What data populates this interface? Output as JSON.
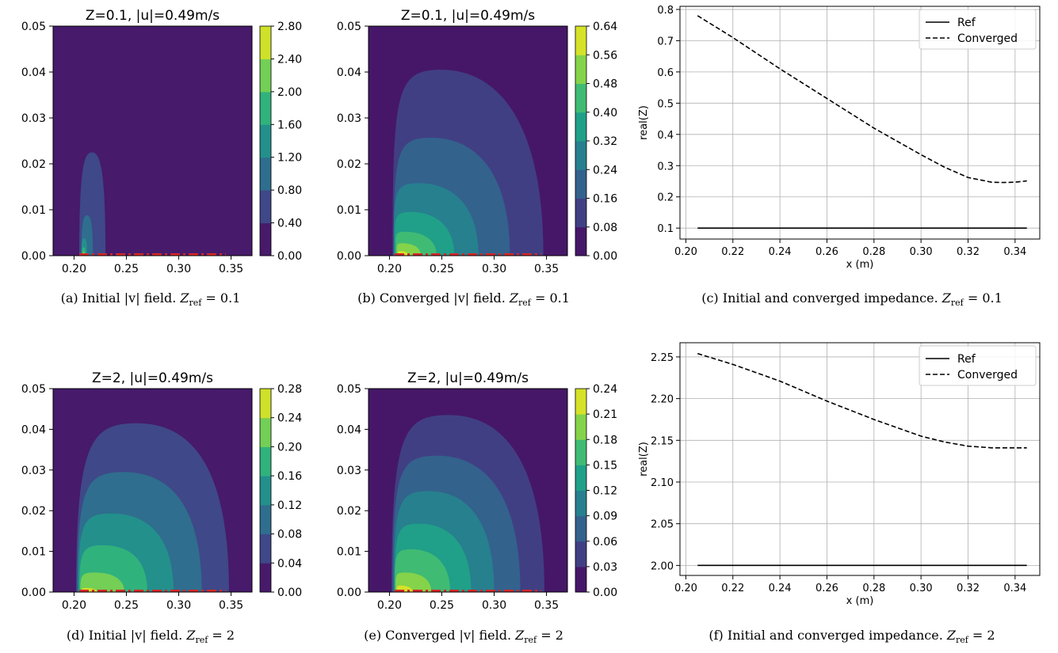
{
  "figure": {
    "captions": [
      {
        "label": "(a)",
        "text": "Initial |v| field.",
        "zlabel": "Z",
        "zsub": "ref",
        "zval": "0.1"
      },
      {
        "label": "(b)",
        "text": "Converged |v| field.",
        "zlabel": "Z",
        "zsub": "ref",
        "zval": "0.1"
      },
      {
        "label": "(c)",
        "text": "Initial and converged impedance.",
        "zlabel": "Z",
        "zsub": "ref",
        "zval": "0.1"
      },
      {
        "label": "(d)",
        "text": "Initial |v| field.",
        "zlabel": "Z",
        "zsub": "ref",
        "zval": "2"
      },
      {
        "label": "(e)",
        "text": "Converged |v| field.",
        "zlabel": "Z",
        "zsub": "ref",
        "zval": "2"
      },
      {
        "label": "(f)",
        "text": "Initial and converged impedance.",
        "zlabel": "Z",
        "zsub": "ref",
        "zval": "2"
      }
    ]
  },
  "chart_data": [
    {
      "id": "a",
      "type": "heatmap",
      "title": "Z=0.1, |u|=0.49m/s",
      "xlim": [
        0.18,
        0.37
      ],
      "ylim": [
        0,
        0.05
      ],
      "xticks": [
        "0.20",
        "0.25",
        "0.30",
        "0.35"
      ],
      "xtick_values": [
        0.2,
        0.25,
        0.3,
        0.35
      ],
      "yticks": [
        "0.00",
        "0.01",
        "0.02",
        "0.03",
        "0.04",
        "0.05"
      ],
      "ytick_values": [
        0,
        0.01,
        0.02,
        0.03,
        0.04,
        0.05
      ],
      "colorbar_ticks": [
        "0.00",
        "0.40",
        "0.80",
        "1.20",
        "1.60",
        "2.00",
        "2.40",
        "2.80"
      ],
      "contours": [
        {
          "level": "0.40",
          "x0": 0.205,
          "x1": 0.23,
          "h": 0.0225,
          "skew": 0.0
        },
        {
          "level": "0.80",
          "x0": 0.207,
          "x1": 0.218,
          "h": 0.0088,
          "skew": 0.0
        },
        {
          "level": "1.20",
          "x0": 0.207,
          "x1": 0.2125,
          "h": 0.0038,
          "skew": 0.0
        },
        {
          "level": "1.60",
          "x0": 0.2075,
          "x1": 0.211,
          "h": 0.0018,
          "skew": 0.0
        },
        {
          "level": "2.00",
          "x0": 0.208,
          "x1": 0.2105,
          "h": 0.0008,
          "skew": 0.0
        }
      ],
      "inlet": [
        0.205,
        0.345
      ],
      "colormap": "viridis"
    },
    {
      "id": "b",
      "type": "heatmap",
      "title": "Z=0.1, |u|=0.49m/s",
      "xlim": [
        0.18,
        0.37
      ],
      "ylim": [
        0,
        0.05
      ],
      "xticks": [
        "0.20",
        "0.25",
        "0.30",
        "0.35"
      ],
      "xtick_values": [
        0.2,
        0.25,
        0.3,
        0.35
      ],
      "yticks": [
        "0.00",
        "0.01",
        "0.02",
        "0.03",
        "0.04",
        "0.05"
      ],
      "ytick_values": [
        0,
        0.01,
        0.02,
        0.03,
        0.04,
        0.05
      ],
      "colorbar_ticks": [
        "0.00",
        "0.08",
        "0.16",
        "0.24",
        "0.32",
        "0.40",
        "0.48",
        "0.56",
        "0.64"
      ],
      "contours": [
        {
          "level": "0.08",
          "x0": 0.203,
          "x1": 0.347,
          "h": 0.0405,
          "skew": -0.35
        },
        {
          "level": "0.16",
          "x0": 0.204,
          "x1": 0.315,
          "h": 0.0257,
          "skew": -0.35
        },
        {
          "level": "0.24",
          "x0": 0.204,
          "x1": 0.285,
          "h": 0.0158,
          "skew": -0.4
        },
        {
          "level": "0.32",
          "x0": 0.205,
          "x1": 0.262,
          "h": 0.0095,
          "skew": -0.45
        },
        {
          "level": "0.40",
          "x0": 0.206,
          "x1": 0.245,
          "h": 0.0052,
          "skew": -0.5
        },
        {
          "level": "0.48",
          "x0": 0.207,
          "x1": 0.23,
          "h": 0.0027,
          "skew": -0.5
        },
        {
          "level": "0.56",
          "x0": 0.208,
          "x1": 0.218,
          "h": 0.001,
          "skew": -0.5
        }
      ],
      "inlet": [
        0.205,
        0.345
      ],
      "colormap": "viridis"
    },
    {
      "id": "c",
      "type": "line",
      "xlabel": "x (m)",
      "ylabel": "real(Z)",
      "xlim": [
        0.1975,
        0.3505
      ],
      "ylim": [
        0.065,
        0.81
      ],
      "xticks": [
        "0.20",
        "0.22",
        "0.24",
        "0.26",
        "0.28",
        "0.30",
        "0.32",
        "0.34"
      ],
      "xtick_values": [
        0.2,
        0.22,
        0.24,
        0.26,
        0.28,
        0.3,
        0.32,
        0.34
      ],
      "yticks": [
        "0.1",
        "0.2",
        "0.3",
        "0.4",
        "0.5",
        "0.6",
        "0.7",
        "0.8"
      ],
      "ytick_values": [
        0.1,
        0.2,
        0.3,
        0.4,
        0.5,
        0.6,
        0.7,
        0.8
      ],
      "grid": true,
      "legend_position": "top-right",
      "series": [
        {
          "name": "Ref",
          "style": "solid",
          "x": [
            0.205,
            0.345
          ],
          "y": [
            0.1,
            0.1
          ]
        },
        {
          "name": "Converged",
          "style": "dashed",
          "x": [
            0.205,
            0.22,
            0.24,
            0.26,
            0.28,
            0.3,
            0.31,
            0.32,
            0.33,
            0.335,
            0.34,
            0.345
          ],
          "y": [
            0.78,
            0.71,
            0.61,
            0.515,
            0.42,
            0.335,
            0.295,
            0.262,
            0.247,
            0.246,
            0.247,
            0.251
          ]
        }
      ]
    },
    {
      "id": "d",
      "type": "heatmap",
      "title": "Z=2, |u|=0.49m/s",
      "xlim": [
        0.18,
        0.37
      ],
      "ylim": [
        0,
        0.05
      ],
      "xticks": [
        "0.20",
        "0.25",
        "0.30",
        "0.35"
      ],
      "xtick_values": [
        0.2,
        0.25,
        0.3,
        0.35
      ],
      "yticks": [
        "0.00",
        "0.01",
        "0.02",
        "0.03",
        "0.04",
        "0.05"
      ],
      "ytick_values": [
        0,
        0.01,
        0.02,
        0.03,
        0.04,
        0.05
      ],
      "colorbar_ticks": [
        "0.00",
        "0.04",
        "0.08",
        "0.12",
        "0.16",
        "0.20",
        "0.24",
        "0.28"
      ],
      "contours": [
        {
          "level": "0.04",
          "x0": 0.202,
          "x1": 0.348,
          "h": 0.0415,
          "skew": -0.2
        },
        {
          "level": "0.08",
          "x0": 0.203,
          "x1": 0.322,
          "h": 0.0295,
          "skew": -0.25
        },
        {
          "level": "0.12",
          "x0": 0.204,
          "x1": 0.295,
          "h": 0.0193,
          "skew": -0.3
        },
        {
          "level": "0.16",
          "x0": 0.205,
          "x1": 0.27,
          "h": 0.0115,
          "skew": -0.3
        },
        {
          "level": "0.20",
          "x0": 0.206,
          "x1": 0.248,
          "h": 0.0048,
          "skew": -0.35
        },
        {
          "level": "0.24",
          "x0": 0.207,
          "x1": 0.222,
          "h": 0.001,
          "skew": -0.3
        }
      ],
      "inlet": [
        0.205,
        0.345
      ],
      "colormap": "viridis"
    },
    {
      "id": "e",
      "type": "heatmap",
      "title": "Z=2, |u|=0.49m/s",
      "xlim": [
        0.18,
        0.37
      ],
      "ylim": [
        0,
        0.05
      ],
      "xticks": [
        "0.20",
        "0.25",
        "0.30",
        "0.35"
      ],
      "xtick_values": [
        0.2,
        0.25,
        0.3,
        0.35
      ],
      "yticks": [
        "0.00",
        "0.01",
        "0.02",
        "0.03",
        "0.04",
        "0.05"
      ],
      "ytick_values": [
        0,
        0.01,
        0.02,
        0.03,
        0.04,
        0.05
      ],
      "colorbar_ticks": [
        "0.00",
        "0.03",
        "0.06",
        "0.09",
        "0.12",
        "0.15",
        "0.18",
        "0.21",
        "0.24"
      ],
      "contours": [
        {
          "level": "0.03",
          "x0": 0.202,
          "x1": 0.348,
          "h": 0.0435,
          "skew": -0.25
        },
        {
          "level": "0.06",
          "x0": 0.203,
          "x1": 0.325,
          "h": 0.0335,
          "skew": -0.3
        },
        {
          "level": "0.09",
          "x0": 0.204,
          "x1": 0.3,
          "h": 0.0248,
          "skew": -0.3
        },
        {
          "level": "0.12",
          "x0": 0.205,
          "x1": 0.278,
          "h": 0.0168,
          "skew": -0.35
        },
        {
          "level": "0.15",
          "x0": 0.205,
          "x1": 0.258,
          "h": 0.0105,
          "skew": -0.4
        },
        {
          "level": "0.18",
          "x0": 0.206,
          "x1": 0.24,
          "h": 0.0048,
          "skew": -0.45
        },
        {
          "level": "0.21",
          "x0": 0.207,
          "x1": 0.222,
          "h": 0.0016,
          "skew": -0.45
        }
      ],
      "inlet": [
        0.205,
        0.345
      ],
      "colormap": "viridis"
    },
    {
      "id": "f",
      "type": "line",
      "xlabel": "x (m)",
      "ylabel": "real(Z)",
      "xlim": [
        0.1975,
        0.3505
      ],
      "ylim": [
        1.988,
        2.267
      ],
      "xticks": [
        "0.20",
        "0.22",
        "0.24",
        "0.26",
        "0.28",
        "0.30",
        "0.32",
        "0.34"
      ],
      "xtick_values": [
        0.2,
        0.22,
        0.24,
        0.26,
        0.28,
        0.3,
        0.32,
        0.34
      ],
      "yticks": [
        "2.00",
        "2.05",
        "2.10",
        "2.15",
        "2.20",
        "2.25"
      ],
      "ytick_values": [
        2.0,
        2.05,
        2.1,
        2.15,
        2.2,
        2.25
      ],
      "grid": true,
      "legend_position": "top-right",
      "series": [
        {
          "name": "Ref",
          "style": "solid",
          "x": [
            0.205,
            0.345
          ],
          "y": [
            2.0,
            2.0
          ]
        },
        {
          "name": "Converged",
          "style": "dashed",
          "x": [
            0.205,
            0.22,
            0.24,
            0.26,
            0.28,
            0.3,
            0.31,
            0.32,
            0.33,
            0.34,
            0.345
          ],
          "y": [
            2.254,
            2.241,
            2.221,
            2.197,
            2.175,
            2.155,
            2.148,
            2.143,
            2.141,
            2.141,
            2.141
          ]
        }
      ]
    }
  ]
}
